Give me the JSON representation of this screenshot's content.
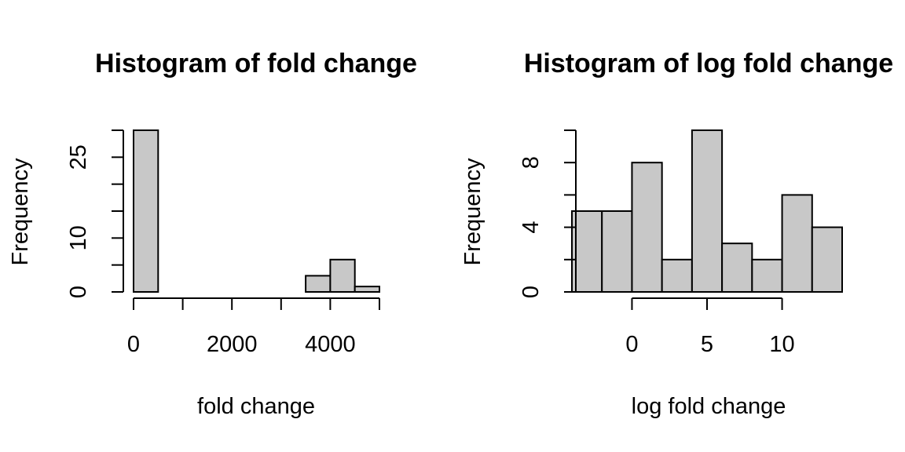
{
  "chart_data": [
    {
      "type": "bar",
      "title": "Histogram of fold change",
      "xlabel": "fold change",
      "ylabel": "Frequency",
      "bins": [
        [
          0,
          500
        ],
        [
          500,
          1000
        ],
        [
          1000,
          1500
        ],
        [
          1500,
          2000
        ],
        [
          2000,
          2500
        ],
        [
          2500,
          3000
        ],
        [
          3000,
          3500
        ],
        [
          3500,
          4000
        ],
        [
          4000,
          4500
        ],
        [
          4500,
          5000
        ]
      ],
      "values": [
        30,
        0,
        0,
        0,
        0,
        0,
        0,
        3,
        6,
        1
      ],
      "xlim": [
        0,
        5000
      ],
      "ylim": [
        0,
        30
      ],
      "x_ticks": [
        0,
        1000,
        2000,
        3000,
        4000,
        5000
      ],
      "x_tick_labels": [
        "0",
        "",
        "2000",
        "",
        "4000",
        ""
      ],
      "y_ticks": [
        0,
        5,
        10,
        15,
        20,
        25,
        30
      ],
      "y_tick_labels": [
        "0",
        "",
        "10",
        "",
        "",
        "25",
        ""
      ],
      "grid": false
    },
    {
      "type": "bar",
      "title": "Histogram of log fold change",
      "xlabel": "log fold change",
      "ylabel": "Frequency",
      "bins": [
        [
          -4,
          -2
        ],
        [
          -2,
          0
        ],
        [
          0,
          2
        ],
        [
          2,
          4
        ],
        [
          4,
          6
        ],
        [
          6,
          8
        ],
        [
          8,
          10
        ],
        [
          10,
          12
        ],
        [
          12,
          14
        ]
      ],
      "values": [
        5,
        5,
        8,
        2,
        10,
        3,
        2,
        6,
        4
      ],
      "xlim": [
        -4,
        14
      ],
      "ylim": [
        0,
        10
      ],
      "x_ticks": [
        0,
        5,
        10
      ],
      "x_tick_labels": [
        "0",
        "5",
        "10"
      ],
      "y_ticks": [
        0,
        2,
        4,
        6,
        8,
        10
      ],
      "y_tick_labels": [
        "0",
        "",
        "4",
        "",
        "8",
        ""
      ],
      "grid": false
    }
  ]
}
